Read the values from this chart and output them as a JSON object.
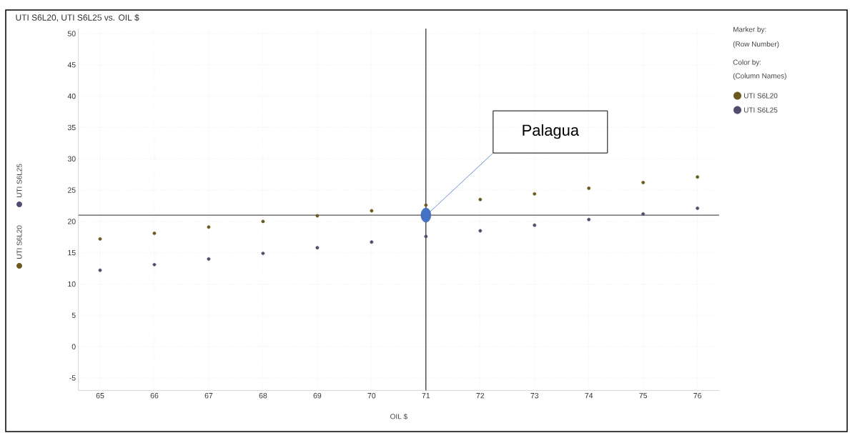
{
  "chart_data": {
    "type": "scatter",
    "title": "UTI S6L20, UTI S6L25 vs. OIL $",
    "xlabel": "OIL $",
    "x": [
      65,
      66,
      67,
      68,
      69,
      70,
      71,
      72,
      73,
      74,
      75,
      76
    ],
    "series": [
      {
        "name": "UTI S6L20",
        "color": "#6b5a1e",
        "values": [
          17.2,
          18.1,
          19.1,
          20.0,
          20.9,
          21.7,
          22.6,
          23.5,
          24.4,
          25.3,
          26.2,
          27.1
        ]
      },
      {
        "name": "UTI S6L25",
        "color": "#524c6e",
        "values": [
          12.2,
          13.1,
          14.0,
          14.9,
          15.8,
          16.7,
          17.6,
          18.5,
          19.4,
          20.3,
          21.2,
          22.1
        ]
      }
    ],
    "xlim": [
      64.6,
      76.4
    ],
    "ylim": [
      -7,
      50.8
    ],
    "xticks": [
      65,
      66,
      67,
      68,
      69,
      70,
      71,
      72,
      73,
      74,
      75,
      76
    ],
    "yticks": [
      -5,
      0,
      5,
      10,
      15,
      20,
      25,
      30,
      35,
      40,
      45,
      50
    ],
    "ref_lines": [
      {
        "axis": "y",
        "value": 21,
        "color": "#555555"
      },
      {
        "axis": "x",
        "value": 71,
        "color": "#000000"
      }
    ],
    "annotations": [
      "Marker by:",
      "(Row Number)",
      "Color by:",
      "(Column Names)",
      "Palagua"
    ],
    "grid": true,
    "legend": "right",
    "marker": "circle"
  }
}
